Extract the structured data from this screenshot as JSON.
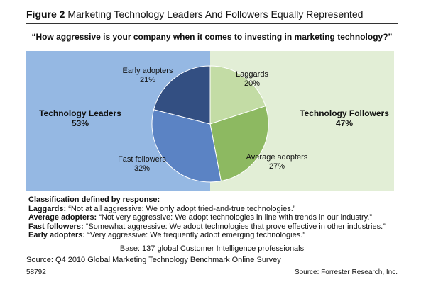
{
  "figure": {
    "label": "Figure 2",
    "title": "Marketing Technology Leaders And Followers Equally Represented"
  },
  "question": "“How aggressive is your company when it comes to investing in marketing technology?”",
  "groups": {
    "leaders": {
      "label": "Technology Leaders",
      "value": "53%"
    },
    "followers": {
      "label": "Technology Followers",
      "value": "47%"
    }
  },
  "chart_data": {
    "type": "pie",
    "slices": [
      {
        "label": "Laggards",
        "value": 20,
        "display": "20%",
        "color": "#c3dca5"
      },
      {
        "label": "Average adopters",
        "value": 27,
        "display": "27%",
        "color": "#8db961"
      },
      {
        "label": "Fast followers",
        "value": 32,
        "display": "32%",
        "color": "#5b83c4"
      },
      {
        "label": "Early adopters",
        "value": 21,
        "display": "21%",
        "color": "#334f82"
      }
    ],
    "colors": {
      "leaders_panel": "#95b8e3",
      "followers_panel": "#e2eed6"
    }
  },
  "classification": {
    "heading": "Classification defined by response:",
    "rows": [
      {
        "term": "Laggards:",
        "text": "“Not at all aggressive: We only adopt tried-and-true technologies.”"
      },
      {
        "term": "Average adopters:",
        "text": "“Not very aggressive: We adopt technologies in line with trends in our industry.”"
      },
      {
        "term": "Fast followers:",
        "text": "“Somewhat aggressive: We adopt technologies that prove effective in other industries.”"
      },
      {
        "term": "Early adopters:",
        "text": "“Very aggressive: We frequently adopt emerging technologies.”"
      }
    ]
  },
  "base": "Base: 137 global Customer Intelligence professionals",
  "source": "Source: Q4 2010 Global Marketing Technology Benchmark Online Survey",
  "footer": {
    "id": "58792",
    "credit": "Source: Forrester Research, Inc."
  }
}
